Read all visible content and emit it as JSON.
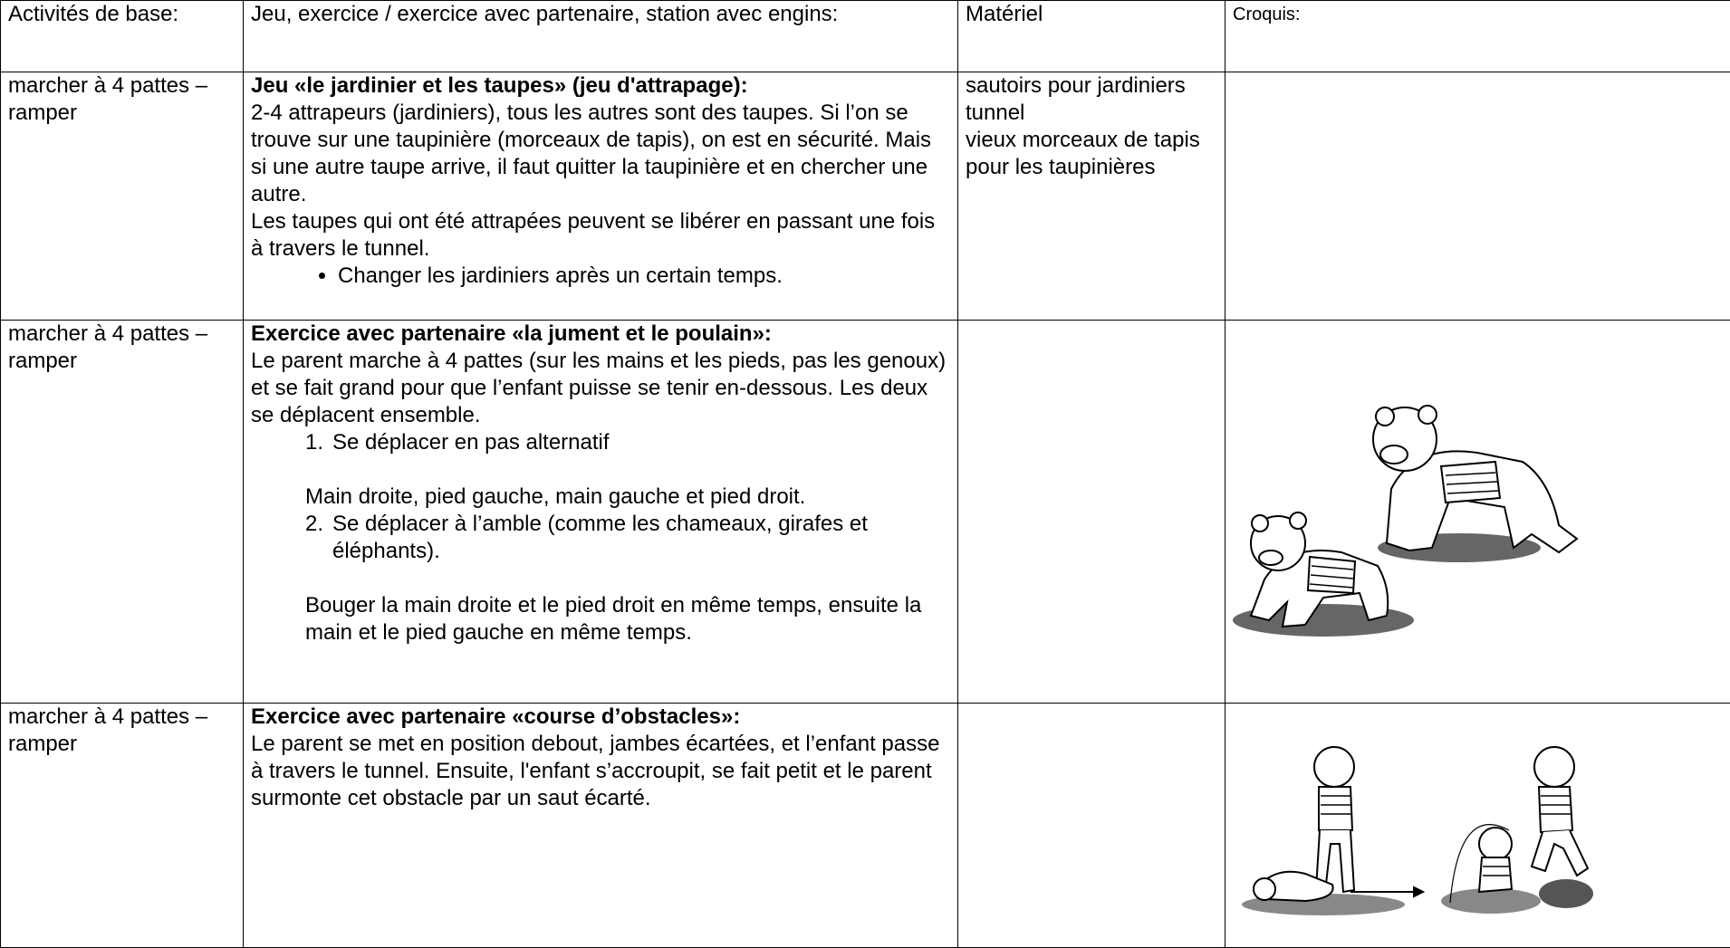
{
  "header": {
    "activity": "Activités de base:",
    "description": "Jeu, exercice / exercice avec partenaire, station avec engins:",
    "material": "Matériel",
    "sketch": "Croquis:"
  },
  "rows": [
    {
      "activity": "marcher à 4 pattes – ramper",
      "title": "Jeu «le jardinier et les taupes» (jeu d'attrapage):",
      "paragraphs": [
        "2-4 attrapeurs (jardiniers), tous les autres sont des taupes. Si l’on se trouve sur une taupinière (morceaux de tapis), on est en sécurité. Mais si une autre taupe arrive, il faut quitter la taupinière et en chercher une autre.",
        "Les taupes qui ont été attrapées peuvent se libérer en passant une fois à travers le tunnel."
      ],
      "bullets": [
        "Changer les jardiniers après un certain temps."
      ],
      "material": [
        "sautoirs pour jardiniers",
        "tunnel",
        "vieux morceaux de tapis pour les taupinières"
      ]
    },
    {
      "activity": "marcher à 4 pattes – ramper",
      "title": "Exercice avec partenaire «la jument et le poulain»:",
      "paragraphs": [
        "Le parent marche à 4 pattes (sur les mains et les pieds, pas les genoux) et se fait grand pour que l’enfant puisse se tenir en-dessous. Les deux se déplacent ensemble."
      ],
      "steps": [
        {
          "number": "1.",
          "text": "Se déplacer en pas alternatif",
          "detail": "Main droite, pied gauche, main gauche et pied droit."
        },
        {
          "number": "2.",
          "text": "Se déplacer à l’amble (comme les chameaux, girafes et éléphants).",
          "detail": "Bouger la main droite et le pied droit en même temps, ensuite la main et le pied gauche en même temps."
        }
      ]
    },
    {
      "activity": "marcher à 4 pattes – ramper",
      "title": "Exercice avec partenaire «course d’obstacles»:",
      "paragraphs": [
        "Le parent se met en position debout, jambes écartées, et l’enfant passe à travers le tunnel. Ensuite, l'enfant s’accroupit, se fait petit et le parent surmonte cet obstacle par un saut écarté."
      ]
    }
  ]
}
